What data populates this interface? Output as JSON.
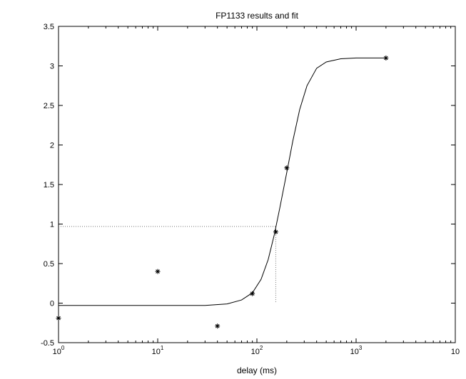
{
  "chart_data": {
    "type": "scatter",
    "title": "FP1133 results and fit",
    "xlabel": "delay (ms)",
    "ylabel": "",
    "x_scale": "log",
    "xlim": [
      1,
      10000
    ],
    "ylim": [
      -0.5,
      3.5
    ],
    "x_ticks": [
      1,
      10,
      100,
      1000,
      10000
    ],
    "x_tick_labels": [
      {
        "base": "10",
        "exp": "0"
      },
      {
        "base": "10",
        "exp": "1"
      },
      {
        "base": "10",
        "exp": "2"
      },
      {
        "base": "10",
        "exp": "3"
      },
      {
        "base": "10",
        "exp": ""
      }
    ],
    "y_ticks": [
      -0.5,
      0,
      0.5,
      1,
      1.5,
      2,
      2.5,
      3,
      3.5
    ],
    "y_tick_labels": [
      "-0.5",
      "0",
      "0.5",
      "1",
      "1.5",
      "2",
      "2.5",
      "3",
      "3.5"
    ],
    "grid": false,
    "series": [
      {
        "marker": "asterisk",
        "color": "#000000",
        "x": [
          1,
          10,
          40,
          90,
          155,
          200,
          2000
        ],
        "y": [
          -0.19,
          0.4,
          -0.29,
          0.12,
          0.9,
          1.71,
          3.1
        ]
      },
      {
        "style": "line",
        "color": "#000000",
        "x": [
          1,
          10,
          30,
          50,
          70,
          90,
          110,
          130,
          150,
          170,
          200,
          230,
          270,
          320,
          400,
          500,
          700,
          1000,
          1500,
          2000
        ],
        "y": [
          -0.03,
          -0.03,
          -0.03,
          -0.01,
          0.04,
          0.13,
          0.3,
          0.55,
          0.87,
          1.2,
          1.65,
          2.05,
          2.45,
          2.75,
          2.97,
          3.05,
          3.09,
          3.1,
          3.1,
          3.1
        ]
      }
    ],
    "reference_lines": {
      "color": "#777777",
      "style": "dotted",
      "x": 155,
      "y": 0.97
    }
  }
}
